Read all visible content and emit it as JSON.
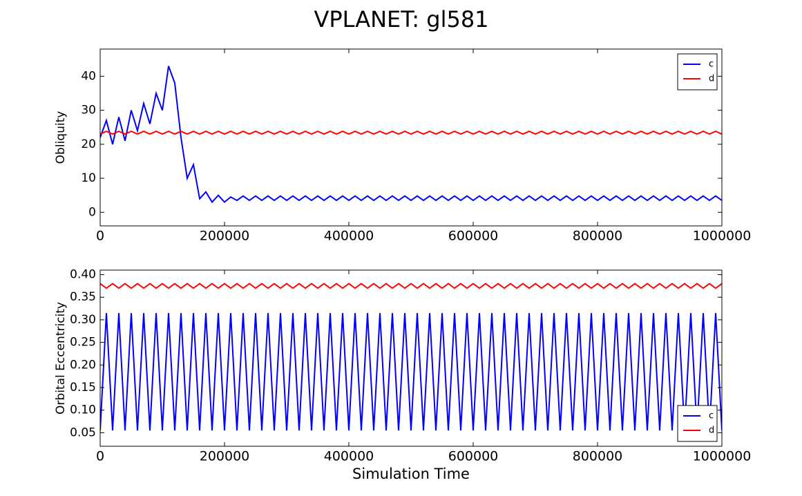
{
  "title": "VPLANET: gl581",
  "chart_data": [
    {
      "type": "line",
      "ylabel": "Obliquity",
      "legend": "upper right",
      "xlim": [
        0,
        1000000
      ],
      "xticks": [
        0,
        200000,
        400000,
        600000,
        800000,
        1000000
      ],
      "ylim": [
        -4,
        48
      ],
      "yticks": [
        0,
        10,
        20,
        30,
        40
      ],
      "x": [
        0,
        10000,
        20000,
        30000,
        40000,
        50000,
        60000,
        70000,
        80000,
        90000,
        100000,
        110000,
        120000,
        130000,
        140000,
        150000,
        160000,
        170000,
        180000,
        190000,
        200000,
        210000,
        220000,
        230000,
        240000,
        250000,
        260000,
        270000,
        280000,
        290000,
        300000,
        310000,
        320000,
        330000,
        340000,
        350000,
        360000,
        370000,
        380000,
        390000,
        400000,
        410000,
        420000,
        430000,
        440000,
        450000,
        460000,
        470000,
        480000,
        490000,
        500000,
        510000,
        520000,
        530000,
        540000,
        550000,
        560000,
        570000,
        580000,
        590000,
        600000,
        610000,
        620000,
        630000,
        640000,
        650000,
        660000,
        670000,
        680000,
        690000,
        700000,
        710000,
        720000,
        730000,
        740000,
        750000,
        760000,
        770000,
        780000,
        790000,
        800000,
        810000,
        820000,
        830000,
        840000,
        850000,
        860000,
        870000,
        880000,
        890000,
        900000,
        910000,
        920000,
        930000,
        940000,
        950000,
        960000,
        970000,
        980000,
        990000,
        1000000
      ],
      "series": [
        {
          "name": "c",
          "color": "#0000ff",
          "values": [
            22,
            27,
            20,
            28,
            21,
            30,
            24,
            32,
            26,
            35,
            30,
            43,
            38,
            22,
            10,
            14,
            4,
            6,
            3,
            5,
            3,
            4.5,
            3.5,
            4.8,
            3.5,
            4.8,
            3.5,
            4.8,
            3.5,
            4.8,
            3.5,
            4.8,
            3.5,
            4.8,
            3.5,
            4.8,
            3.5,
            4.8,
            3.5,
            4.8,
            3.5,
            4.8,
            3.5,
            4.8,
            3.5,
            4.8,
            3.5,
            4.8,
            3.5,
            4.8,
            3.5,
            4.8,
            3.5,
            4.8,
            3.5,
            4.8,
            3.5,
            4.8,
            3.5,
            4.8,
            3.5,
            4.8,
            3.5,
            4.8,
            3.5,
            4.8,
            3.5,
            4.8,
            3.5,
            4.8,
            3.5,
            4.8,
            3.5,
            4.8,
            3.5,
            4.8,
            3.5,
            4.8,
            3.5,
            4.8,
            3.5,
            4.8,
            3.5,
            4.8,
            3.5,
            4.8,
            3.5,
            4.8,
            3.5,
            4.8,
            3.5,
            4.8,
            3.5,
            4.8,
            3.5,
            4.8,
            3.5,
            4.8,
            3.5,
            4.8,
            3.5
          ]
        },
        {
          "name": "d",
          "color": "#ff0000",
          "values": [
            23,
            23.8,
            23,
            23.8,
            23,
            23.8,
            23,
            23.8,
            23,
            23.8,
            23,
            23.8,
            23,
            23.8,
            23,
            23.8,
            23,
            23.8,
            23,
            23.8,
            23,
            23.8,
            23,
            23.8,
            23,
            23.8,
            23,
            23.8,
            23,
            23.8,
            23,
            23.8,
            23,
            23.8,
            23,
            23.8,
            23,
            23.8,
            23,
            23.8,
            23,
            23.8,
            23,
            23.8,
            23,
            23.8,
            23,
            23.8,
            23,
            23.8,
            23,
            23.8,
            23,
            23.8,
            23,
            23.8,
            23,
            23.8,
            23,
            23.8,
            23,
            23.8,
            23,
            23.8,
            23,
            23.8,
            23,
            23.8,
            23,
            23.8,
            23,
            23.8,
            23,
            23.8,
            23,
            23.8,
            23,
            23.8,
            23,
            23.8,
            23,
            23.8,
            23,
            23.8,
            23,
            23.8,
            23,
            23.8,
            23,
            23.8,
            23,
            23.8,
            23,
            23.8,
            23,
            23.8,
            23,
            23.8,
            23,
            23.8,
            23
          ]
        }
      ]
    },
    {
      "type": "line",
      "ylabel": "Orbital Eccentricity",
      "xlabel": "Simulation Time",
      "legend": "lower right",
      "xlim": [
        0,
        1000000
      ],
      "xticks": [
        0,
        200000,
        400000,
        600000,
        800000,
        1000000
      ],
      "ylim": [
        0.02,
        0.41
      ],
      "yticks": [
        0.05,
        {
          "value": 0.1,
          "label": "0.10"
        },
        0.15,
        {
          "value": 0.2,
          "label": "0.20"
        },
        0.25,
        {
          "value": 0.3,
          "label": "0.30"
        },
        0.35,
        {
          "value": 0.4,
          "label": "0.40"
        }
      ],
      "x": [
        0,
        10000,
        20000,
        30000,
        40000,
        50000,
        60000,
        70000,
        80000,
        90000,
        100000,
        110000,
        120000,
        130000,
        140000,
        150000,
        160000,
        170000,
        180000,
        190000,
        200000,
        210000,
        220000,
        230000,
        240000,
        250000,
        260000,
        270000,
        280000,
        290000,
        300000,
        310000,
        320000,
        330000,
        340000,
        350000,
        360000,
        370000,
        380000,
        390000,
        400000,
        410000,
        420000,
        430000,
        440000,
        450000,
        460000,
        470000,
        480000,
        490000,
        500000,
        510000,
        520000,
        530000,
        540000,
        550000,
        560000,
        570000,
        580000,
        590000,
        600000,
        610000,
        620000,
        630000,
        640000,
        650000,
        660000,
        670000,
        680000,
        690000,
        700000,
        710000,
        720000,
        730000,
        740000,
        750000,
        760000,
        770000,
        780000,
        790000,
        800000,
        810000,
        820000,
        830000,
        840000,
        850000,
        860000,
        870000,
        880000,
        890000,
        900000,
        910000,
        920000,
        930000,
        940000,
        950000,
        960000,
        970000,
        980000,
        990000,
        1000000
      ],
      "series": [
        {
          "name": "c",
          "color": "#0000ff",
          "values": [
            0.055,
            0.315,
            0.055,
            0.315,
            0.055,
            0.315,
            0.055,
            0.315,
            0.055,
            0.315,
            0.055,
            0.315,
            0.055,
            0.315,
            0.055,
            0.315,
            0.055,
            0.315,
            0.055,
            0.315,
            0.055,
            0.315,
            0.055,
            0.315,
            0.055,
            0.315,
            0.055,
            0.315,
            0.055,
            0.315,
            0.055,
            0.315,
            0.055,
            0.315,
            0.055,
            0.315,
            0.055,
            0.315,
            0.055,
            0.315,
            0.055,
            0.315,
            0.055,
            0.315,
            0.055,
            0.315,
            0.055,
            0.315,
            0.055,
            0.315,
            0.055,
            0.315,
            0.055,
            0.315,
            0.055,
            0.315,
            0.055,
            0.315,
            0.055,
            0.315,
            0.055,
            0.315,
            0.055,
            0.315,
            0.055,
            0.315,
            0.055,
            0.315,
            0.055,
            0.315,
            0.055,
            0.315,
            0.055,
            0.315,
            0.055,
            0.315,
            0.055,
            0.315,
            0.055,
            0.315,
            0.055,
            0.315,
            0.055,
            0.315,
            0.055,
            0.315,
            0.055,
            0.315,
            0.055,
            0.315,
            0.055,
            0.315,
            0.055,
            0.315,
            0.055,
            0.315,
            0.055,
            0.315,
            0.055,
            0.315,
            0.055
          ]
        },
        {
          "name": "d",
          "color": "#ff0000",
          "values": [
            0.38,
            0.37,
            0.38,
            0.37,
            0.38,
            0.37,
            0.38,
            0.37,
            0.38,
            0.37,
            0.38,
            0.37,
            0.38,
            0.37,
            0.38,
            0.37,
            0.38,
            0.37,
            0.38,
            0.37,
            0.38,
            0.37,
            0.38,
            0.37,
            0.38,
            0.37,
            0.38,
            0.37,
            0.38,
            0.37,
            0.38,
            0.37,
            0.38,
            0.37,
            0.38,
            0.37,
            0.38,
            0.37,
            0.38,
            0.37,
            0.38,
            0.37,
            0.38,
            0.37,
            0.38,
            0.37,
            0.38,
            0.37,
            0.38,
            0.37,
            0.38,
            0.37,
            0.38,
            0.37,
            0.38,
            0.37,
            0.38,
            0.37,
            0.38,
            0.37,
            0.38,
            0.37,
            0.38,
            0.37,
            0.38,
            0.37,
            0.38,
            0.37,
            0.38,
            0.37,
            0.38,
            0.37,
            0.38,
            0.37,
            0.38,
            0.37,
            0.38,
            0.37,
            0.38,
            0.37,
            0.38,
            0.37,
            0.38,
            0.37,
            0.38,
            0.37,
            0.38,
            0.37,
            0.38,
            0.37,
            0.38,
            0.37,
            0.38,
            0.37,
            0.38,
            0.37,
            0.38,
            0.37,
            0.38,
            0.37,
            0.38
          ]
        }
      ]
    }
  ]
}
